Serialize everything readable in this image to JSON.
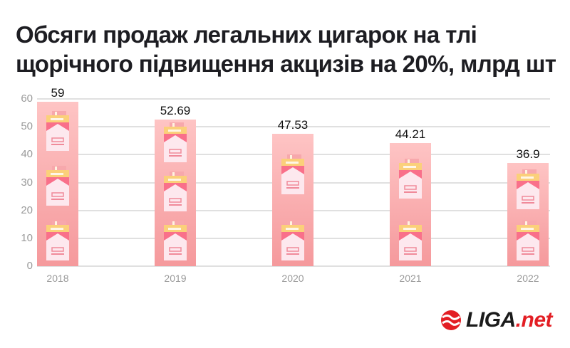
{
  "title": "Обсяги продаж легальних цигарок на тлі щорічного підвищення акцизів на 20%, млрд шт",
  "logo": {
    "main": "LIGA",
    "suffix": ".net",
    "icon": "liga-globe-icon",
    "color": "#e31e24"
  },
  "chart_data": {
    "type": "bar",
    "title": "Обсяги продаж легальних цигарок на тлі щорічного підвищення акцизів на 20%, млрд шт",
    "categories": [
      "2018",
      "2019",
      "2020",
      "2021",
      "2022"
    ],
    "values": [
      59,
      52.69,
      47.53,
      44.21,
      36.9
    ],
    "value_labels": [
      "59",
      "52.69",
      "47.53",
      "44.21",
      "36.9"
    ],
    "xlabel": "",
    "ylabel": "млрд шт",
    "ylim": [
      0,
      60
    ],
    "yticks": [
      "0",
      "10",
      "20",
      "30",
      "40",
      "50",
      "60"
    ],
    "grid": true,
    "legend": null,
    "bar_color": "#f7a3a6",
    "decoration": "cigarette-pack-icons"
  }
}
